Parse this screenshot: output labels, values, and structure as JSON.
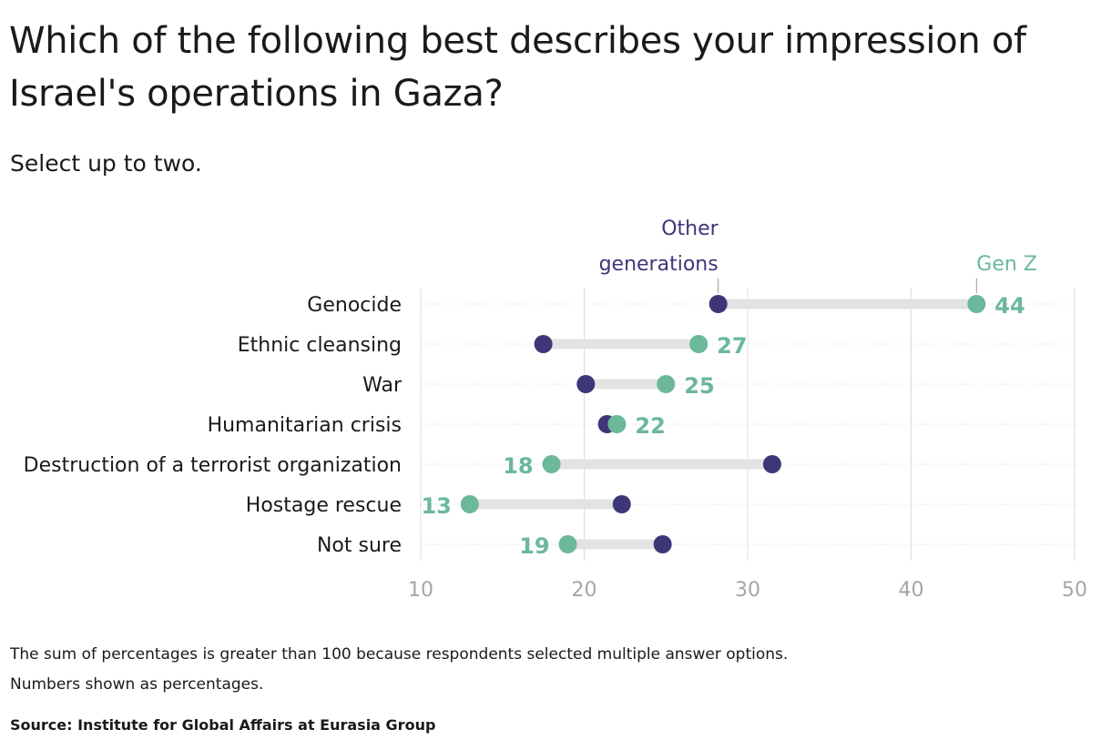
{
  "title": "Which of the following best describes your impression of Israel's operations in Gaza?",
  "subtitle": "Select up to two.",
  "notes": [
    "The sum of percentages is greater than 100 because respondents selected multiple answer options.",
    "Numbers shown as percentages."
  ],
  "source": "Source: Institute for Global Affairs at Eurasia Group",
  "colors": {
    "gen_z": "#6bb89a",
    "other": "#3d3778",
    "connector": "#e3e3e3",
    "grid": "#dcdcdc",
    "axis_text": "#a6a6a6"
  },
  "chart_data": {
    "type": "dot",
    "categories": [
      "Genocide",
      "Ethnic cleansing",
      "War",
      "Humanitarian crisis",
      "Destruction of a terrorist organization",
      "Hostage rescue",
      "Not sure"
    ],
    "series": [
      {
        "name": "Gen Z",
        "values": [
          44,
          27,
          25,
          22,
          18,
          13,
          19
        ]
      },
      {
        "name": "Other generations",
        "values": [
          28.2,
          17.5,
          20.1,
          21.4,
          31.5,
          22.3,
          24.8
        ]
      }
    ],
    "legend_labels": {
      "gen_z": "Gen Z",
      "other_line1": "Other",
      "other_line2": "generations"
    },
    "xlim": [
      10,
      50
    ],
    "x_ticks": [
      10,
      20,
      30,
      40,
      50
    ],
    "grid": true,
    "legend": "direct labels above first row"
  }
}
